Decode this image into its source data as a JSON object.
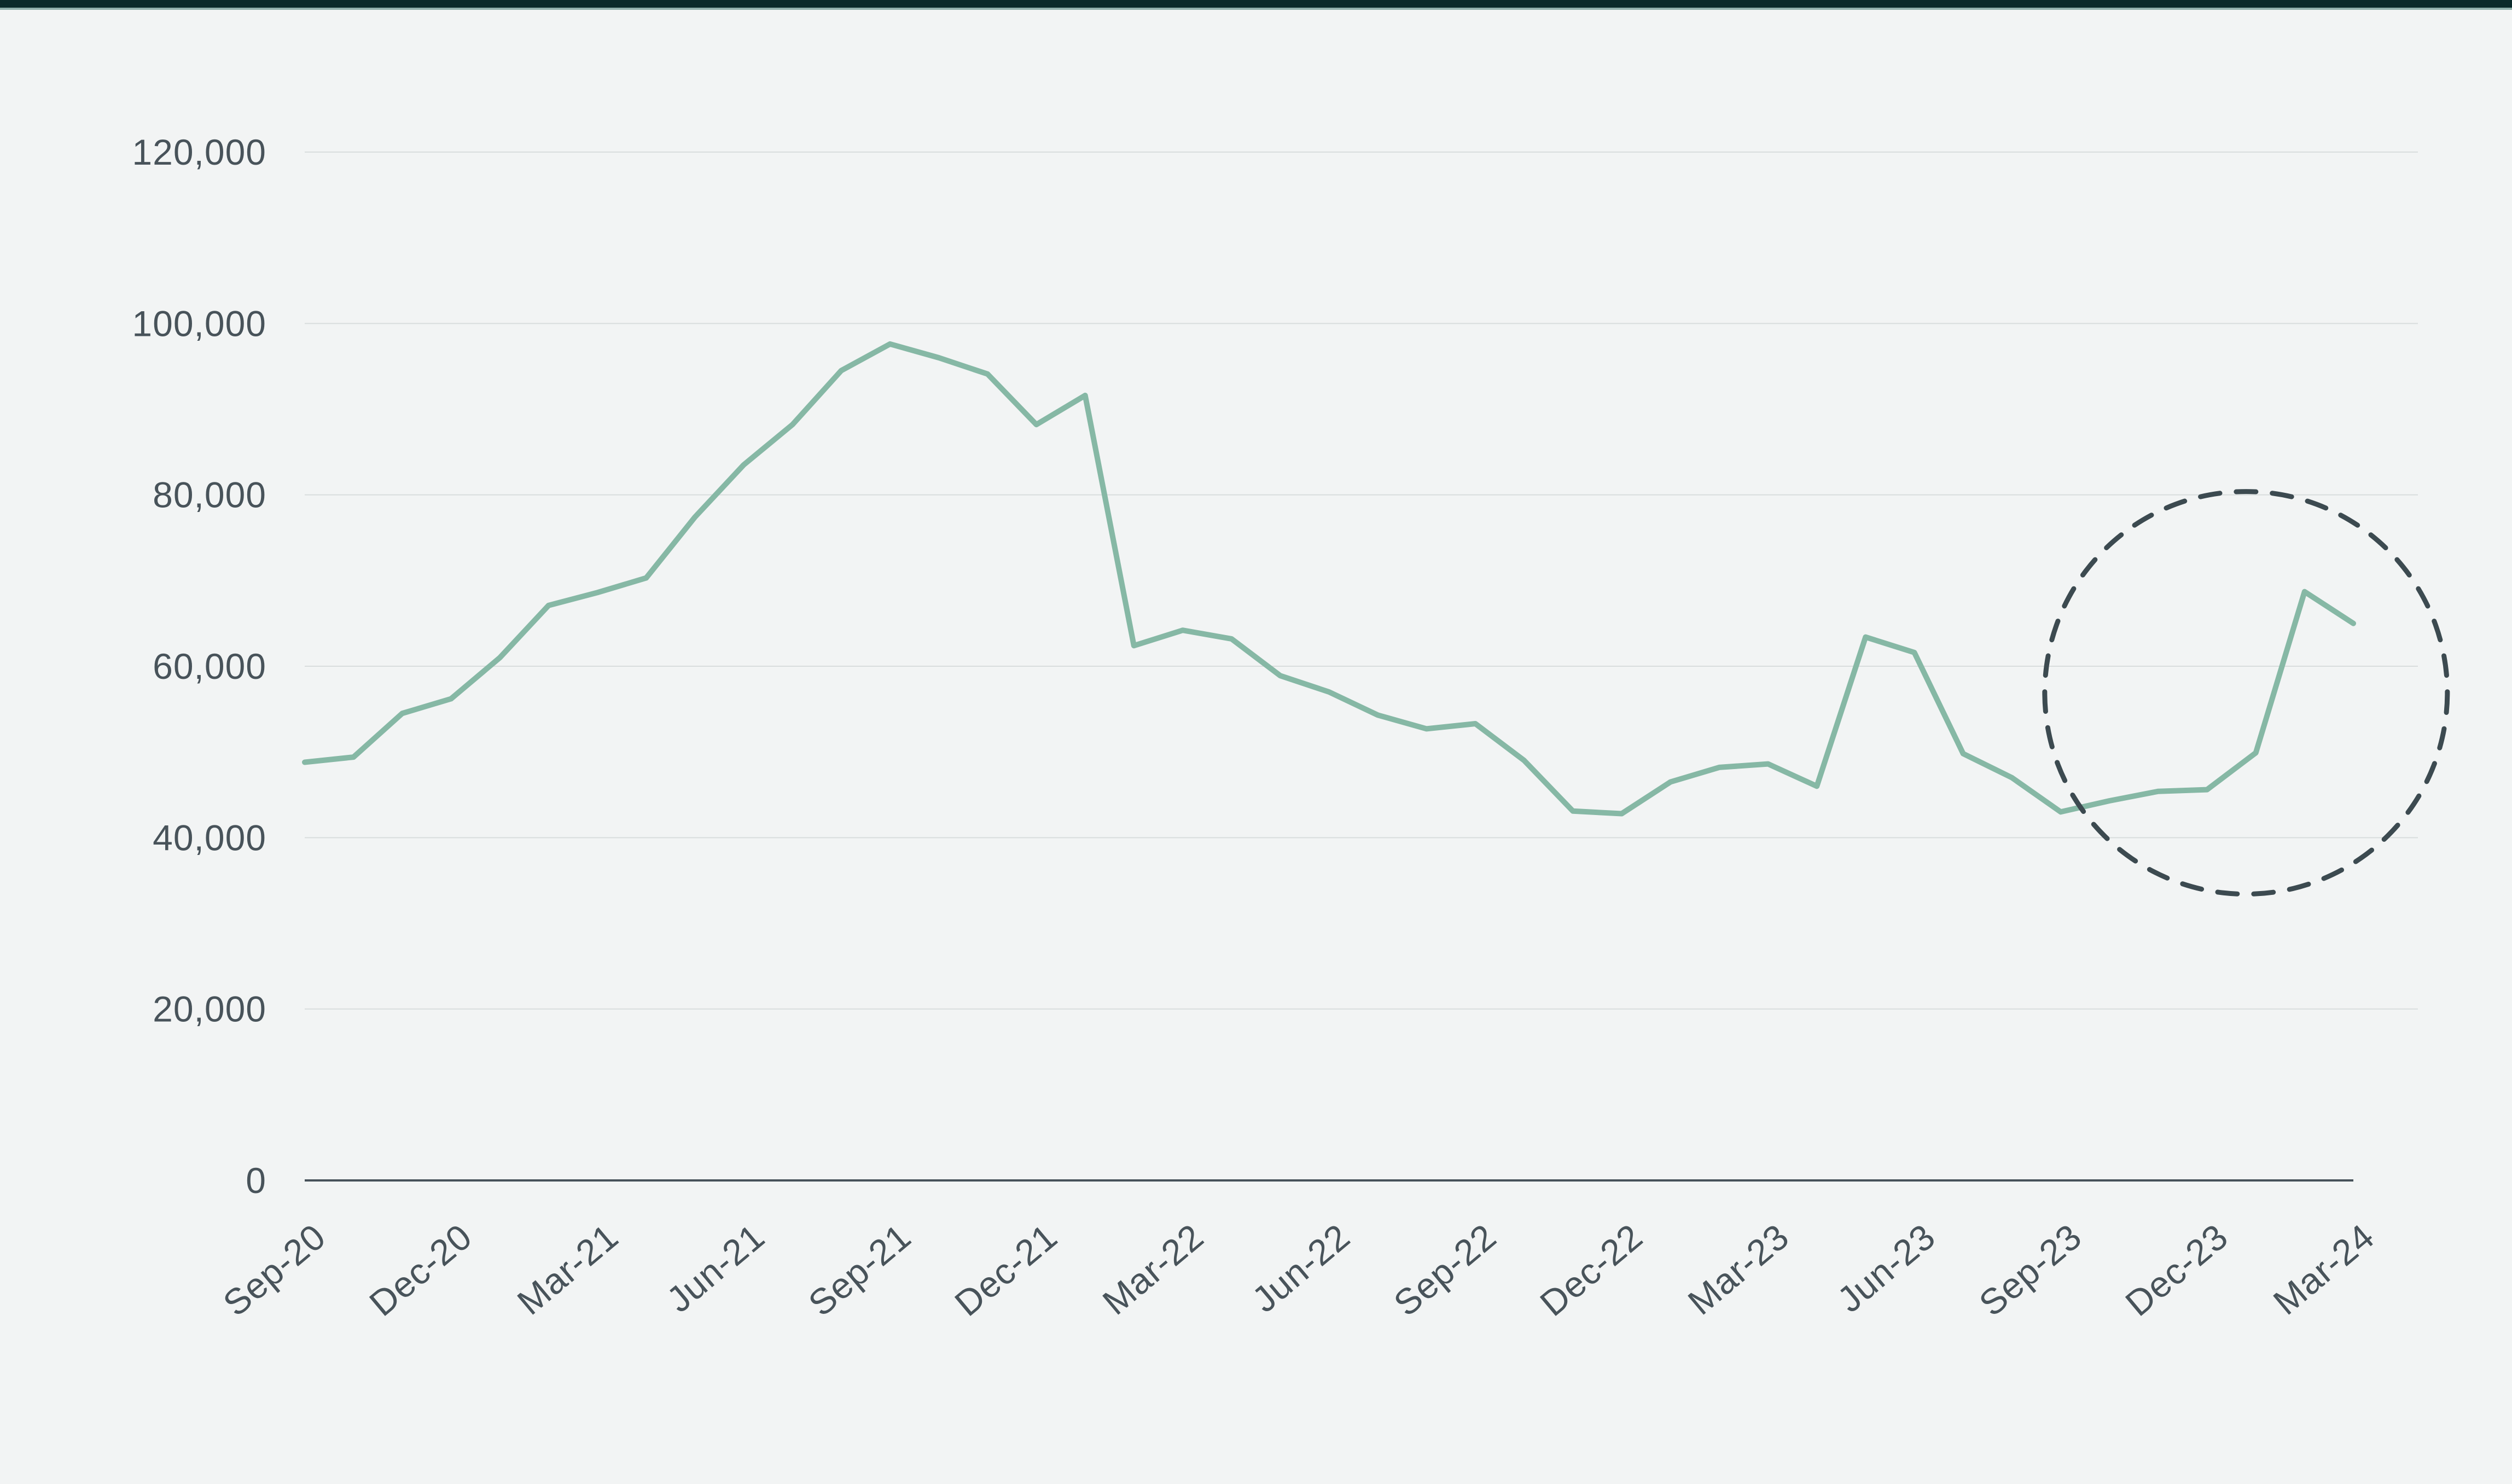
{
  "page": {
    "background_color": "#f2f4f4",
    "topbar_color": "#0a2a2b",
    "topbar_accent_color": "#8fb0ac"
  },
  "chart_data": {
    "type": "line",
    "title": "",
    "xlabel": "",
    "ylabel": "",
    "grid": "on",
    "legend": "none",
    "ylim": [
      0,
      120000
    ],
    "line_color": "#86b8a5",
    "gridline_color": "#d9dddd",
    "axis_color": "#47525a",
    "text_color": "#48535a",
    "months": [
      "Sep-20",
      "Oct-20",
      "Nov-20",
      "Dec-20",
      "Jan-21",
      "Feb-21",
      "Mar-21",
      "Apr-21",
      "May-21",
      "Jun-21",
      "Jul-21",
      "Aug-21",
      "Sep-21",
      "Oct-21",
      "Nov-21",
      "Dec-21",
      "Jan-22",
      "Feb-22",
      "Mar-22",
      "Apr-22",
      "May-22",
      "Jun-22",
      "Jul-22",
      "Aug-22",
      "Sep-22",
      "Oct-22",
      "Nov-22",
      "Dec-22",
      "Jan-23",
      "Feb-23",
      "Mar-23",
      "Apr-23",
      "May-23",
      "Jun-23",
      "Jul-23",
      "Aug-23",
      "Sep-23",
      "Oct-23",
      "Nov-23",
      "Dec-23",
      "Jan-24",
      "Feb-24",
      "Mar-24"
    ],
    "values": [
      48800,
      49400,
      54500,
      56200,
      61000,
      67100,
      68600,
      70300,
      77400,
      83500,
      88200,
      94500,
      97600,
      96000,
      94100,
      88200,
      91600,
      62400,
      64200,
      63200,
      58900,
      57000,
      54300,
      52700,
      53300,
      49000,
      43100,
      42800,
      46500,
      48200,
      48600,
      46000,
      63400,
      61600,
      49800,
      47000,
      43000,
      44300,
      45400,
      45600,
      49900,
      68700,
      65000
    ],
    "x_tick_every_n_months": 3,
    "x_tick_labels": [
      "Sep-20",
      "Dec-20",
      "Mar-21",
      "Jun-21",
      "Sep-21",
      "Dec-21",
      "Mar-22",
      "Jun-22",
      "Sep-22",
      "Dec-22",
      "Mar-23",
      "Jun-23",
      "Sep-23",
      "Dec-23",
      "Mar-24"
    ],
    "y_ticks": [
      {
        "value": 0,
        "label": "0"
      },
      {
        "value": 20000,
        "label": "20,000"
      },
      {
        "value": 40000,
        "label": "40,000"
      },
      {
        "value": 60000,
        "label": "60,000"
      },
      {
        "value": 80000,
        "label": "80,000"
      },
      {
        "value": 100000,
        "label": "100,000"
      },
      {
        "value": 120000,
        "label": "120,000"
      }
    ],
    "annotation": {
      "shape": "dashed-circle",
      "description": "highlights the upturn from late 2023 to Mar-24",
      "color": "#3c4a50",
      "center_month_index": 39.8,
      "center_value": 56900,
      "radius_px": 368
    }
  }
}
